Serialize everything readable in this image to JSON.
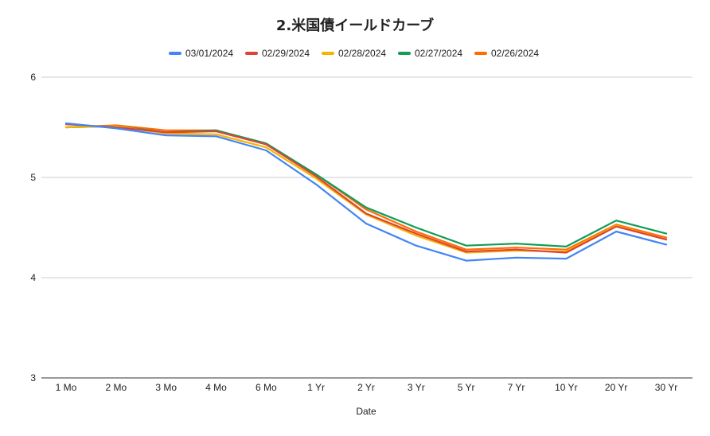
{
  "chart_data": {
    "type": "line",
    "title": "2.米国債イールドカーブ",
    "xlabel": "Date",
    "ylabel": "",
    "ylim": [
      3,
      6
    ],
    "yticks": [
      "3",
      "4",
      "5",
      "6"
    ],
    "grid": true,
    "legend_position": "top",
    "categories": [
      "1 Mo",
      "2 Mo",
      "3 Mo",
      "4 Mo",
      "6 Mo",
      "1 Yr",
      "2 Yr",
      "3 Yr",
      "5 Yr",
      "7 Yr",
      "10 Yr",
      "20 Yr",
      "30 Yr"
    ],
    "series": [
      {
        "name": "03/01/2024",
        "color": "#4285f4",
        "values": [
          5.54,
          5.49,
          5.42,
          5.41,
          5.27,
          4.93,
          4.54,
          4.32,
          4.17,
          4.2,
          4.19,
          4.46,
          4.33
        ]
      },
      {
        "name": "02/29/2024",
        "color": "#db4437",
        "values": [
          5.53,
          5.5,
          5.45,
          5.46,
          5.33,
          5.01,
          4.64,
          4.44,
          4.26,
          4.28,
          4.25,
          4.51,
          4.38
        ]
      },
      {
        "name": "02/28/2024",
        "color": "#f4b400",
        "values": [
          5.5,
          5.51,
          5.44,
          5.43,
          5.3,
          4.99,
          4.63,
          4.42,
          4.25,
          4.27,
          4.26,
          4.52,
          4.38
        ]
      },
      {
        "name": "02/27/2024",
        "color": "#0f9d58",
        "values": [
          5.5,
          5.51,
          5.45,
          5.47,
          5.34,
          5.03,
          4.7,
          4.5,
          4.32,
          4.34,
          4.31,
          4.57,
          4.44
        ]
      },
      {
        "name": "02/26/2024",
        "color": "#ff6d01",
        "values": [
          5.5,
          5.52,
          5.47,
          5.47,
          5.33,
          5.03,
          4.68,
          4.46,
          4.28,
          4.3,
          4.28,
          4.53,
          4.4
        ]
      }
    ]
  }
}
